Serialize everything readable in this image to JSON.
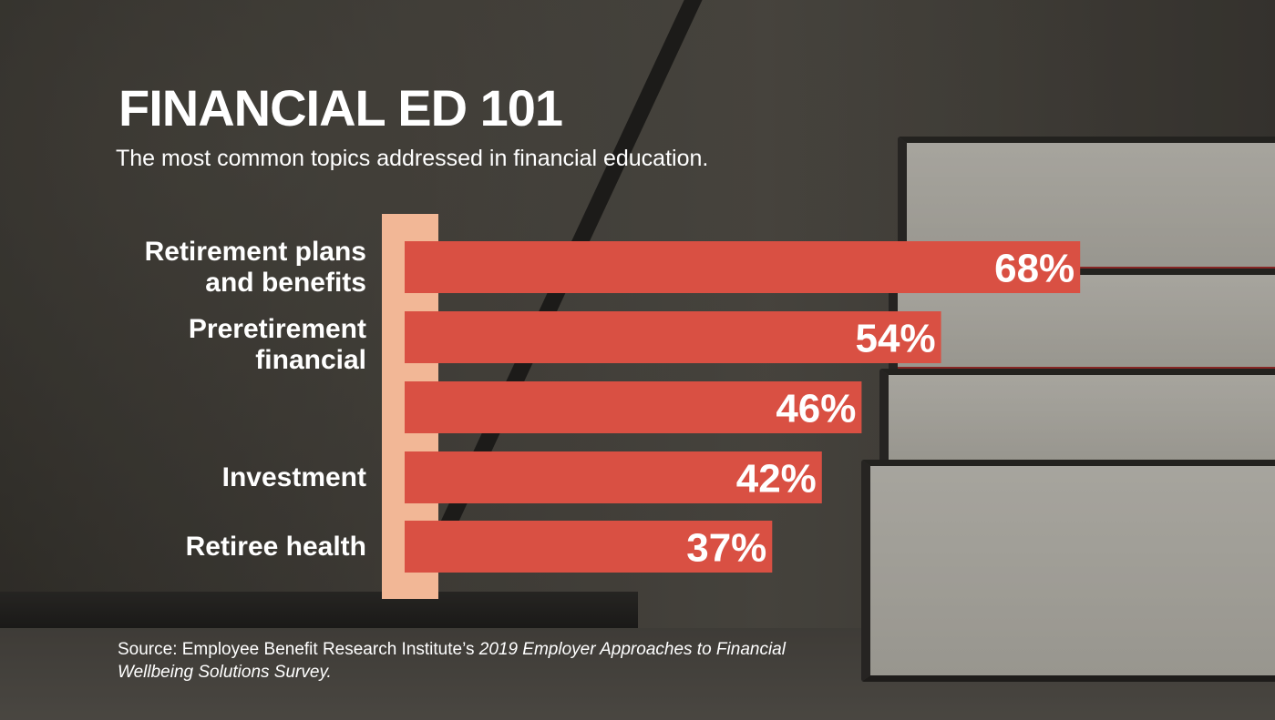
{
  "title": "FINANCIAL ED 101",
  "subtitle": "The most common topics addressed in financial education.",
  "source": {
    "prefix": "Source: Employee Benefit Research Institute’s ",
    "italic": "2019 Employer Approaches to Financial Wellbeing Solutions Survey."
  },
  "colors": {
    "bar": "#d95043",
    "axis": "#f2b796",
    "text": "#ffffff"
  },
  "chart_data": {
    "type": "bar",
    "orientation": "horizontal",
    "categories": [
      "Retirement plans and benefits",
      "Preretirement financial",
      "",
      "Investment",
      "Retiree health"
    ],
    "category_lines": [
      [
        "Retirement plans",
        "and benefits"
      ],
      [
        "Preretirement",
        "financial"
      ],
      [],
      [
        "Investment"
      ],
      [
        "Retiree health"
      ]
    ],
    "values": [
      68,
      54,
      46,
      42,
      37
    ],
    "value_labels": [
      "68%",
      "54%",
      "46%",
      "42%",
      "37%"
    ],
    "title": "FINANCIAL ED 101",
    "xlabel": "",
    "ylabel": "",
    "grid": false
  }
}
